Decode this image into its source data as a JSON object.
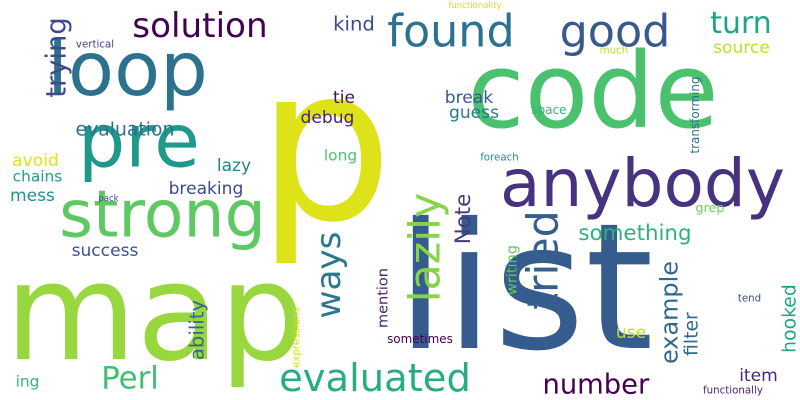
{
  "background": "#ffffff",
  "colormap": [
    "#440154",
    "#3b528b",
    "#21918c",
    "#5ec962",
    "#fde725"
  ],
  "words": [
    {
      "text": "p",
      "color": "#dde318"
    },
    {
      "text": "list",
      "color": "#365c8d"
    },
    {
      "text": "map",
      "color": "#98d83e"
    },
    {
      "text": "code",
      "color": "#4ac16d"
    },
    {
      "text": "loop",
      "color": "#2c728e"
    },
    {
      "text": "anybody",
      "color": "#46327e"
    },
    {
      "text": "pre",
      "color": "#1f9a8a"
    },
    {
      "text": "strong",
      "color": "#5ec962"
    },
    {
      "text": "found",
      "color": "#2c728e"
    },
    {
      "text": "good",
      "color": "#38598c"
    },
    {
      "text": "solution",
      "color": "#440154"
    },
    {
      "text": "evaluated",
      "color": "#27ad81"
    },
    {
      "text": "number",
      "color": "#440154"
    },
    {
      "text": "lazily",
      "color": "#86d549"
    },
    {
      "text": "tried",
      "color": "#355f8d"
    },
    {
      "text": "ways",
      "color": "#2a788e"
    },
    {
      "text": "turn",
      "color": "#20a486"
    },
    {
      "text": "Perl",
      "color": "#42be71"
    },
    {
      "text": "evaluation",
      "color": "#2c728e"
    },
    {
      "text": "trying",
      "color": "#3e4a89"
    },
    {
      "text": "something",
      "color": "#2db27d"
    },
    {
      "text": "example",
      "color": "#31688e"
    },
    {
      "text": "source",
      "color": "#bddf26"
    },
    {
      "text": "debug",
      "color": "#482475"
    },
    {
      "text": "tie",
      "color": "#471063"
    },
    {
      "text": "break",
      "color": "#38598c"
    },
    {
      "text": "guess",
      "color": "#2a788e"
    },
    {
      "text": "kind",
      "color": "#3e4a89"
    },
    {
      "text": "avoid",
      "color": "#dde318"
    },
    {
      "text": "mess",
      "color": "#21918c"
    },
    {
      "text": "lazy",
      "color": "#25858e"
    },
    {
      "text": "chains",
      "color": "#1f9e89"
    },
    {
      "text": "breaking",
      "color": "#3e4a89"
    },
    {
      "text": "success",
      "color": "#3b528b"
    },
    {
      "text": "long",
      "color": "#4ac16d"
    },
    {
      "text": "Note",
      "color": "#453882"
    },
    {
      "text": "mention",
      "color": "#482475"
    },
    {
      "text": "writing",
      "color": "#5ec962"
    },
    {
      "text": "filter",
      "color": "#31688e"
    },
    {
      "text": "item",
      "color": "#482878"
    },
    {
      "text": "hooked",
      "color": "#20a486"
    },
    {
      "text": "ability",
      "color": "#31688e"
    },
    {
      "text": "use",
      "color": "#bddf26"
    },
    {
      "text": "sometimes",
      "color": "#440154"
    },
    {
      "text": "ing",
      "color": "#35b779"
    },
    {
      "text": "grep",
      "color": "#6ccd5a"
    },
    {
      "text": "functionality",
      "color": "#d8e219"
    },
    {
      "text": "vertical",
      "color": "#404688"
    },
    {
      "text": "much",
      "color": "#b5de2b"
    },
    {
      "text": "space",
      "color": "#35b779"
    },
    {
      "text": "foreach",
      "color": "#1f968b"
    },
    {
      "text": "pack",
      "color": "#3e4a89"
    },
    {
      "text": "transforming",
      "color": "#2d708e"
    },
    {
      "text": "tend",
      "color": "#3b528b"
    },
    {
      "text": "expressions",
      "color": "#d2e21b"
    },
    {
      "text": "functionally",
      "color": "#482878"
    }
  ]
}
